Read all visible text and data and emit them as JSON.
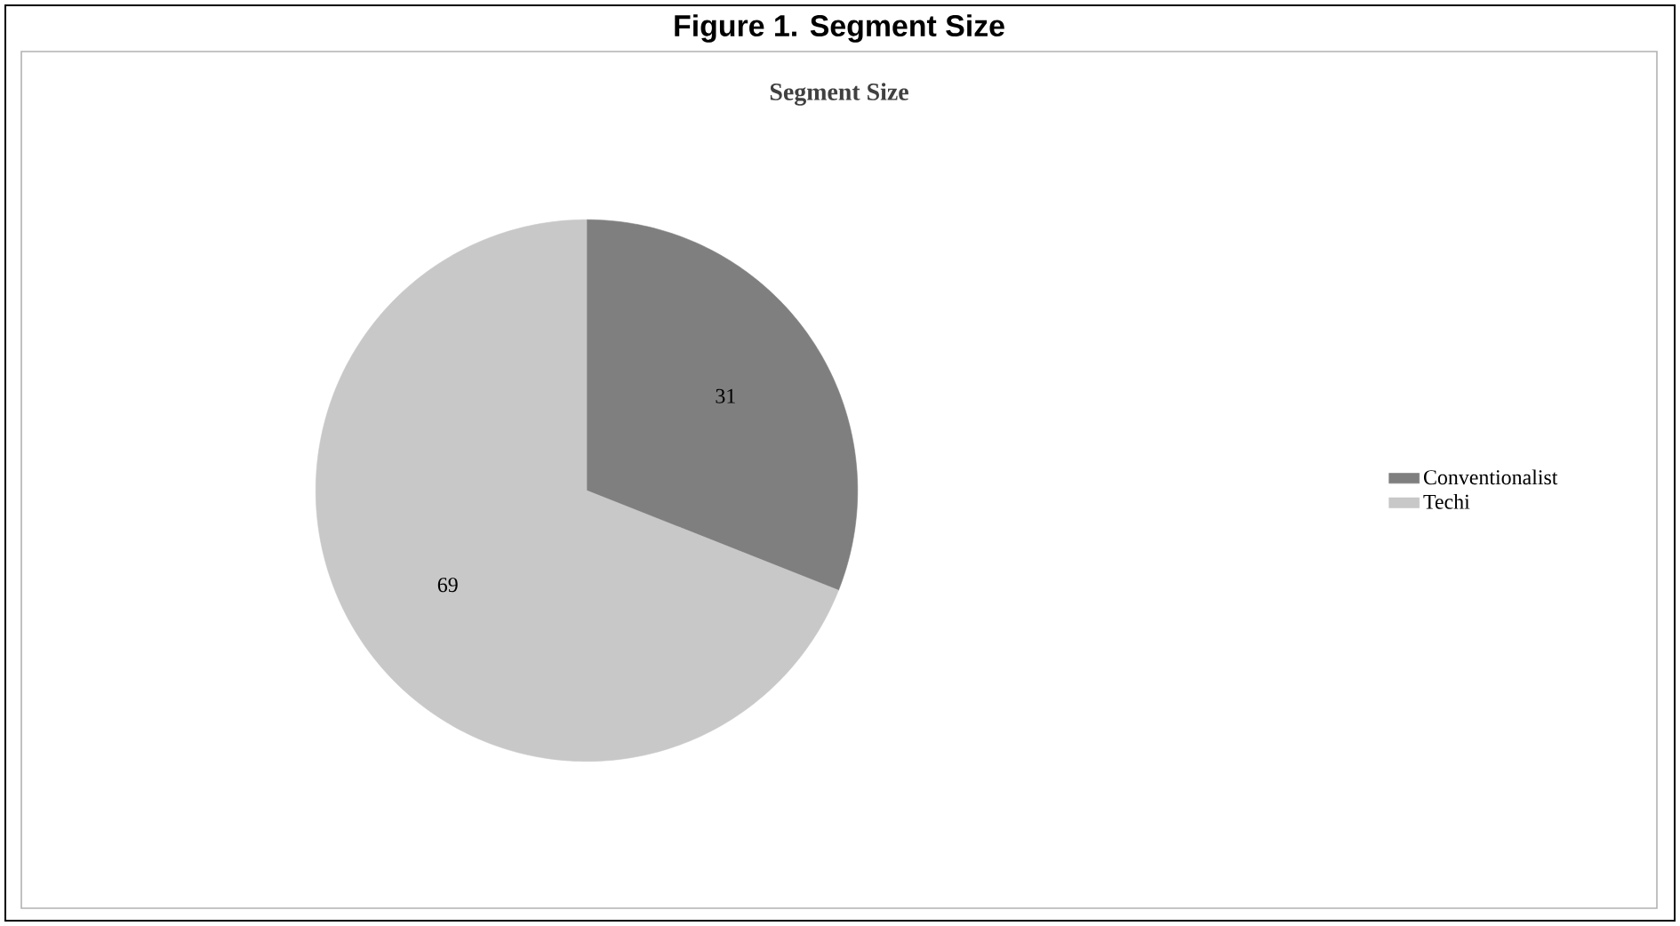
{
  "chart_data": {
    "type": "pie",
    "title": "Figure 1. Segment Size",
    "subtitle": "Segment Size",
    "categories": [
      "Conventionalist",
      "Techi"
    ],
    "values": [
      31,
      69
    ],
    "colors": [
      "#7f7f7f",
      "#c8c8c8"
    ],
    "data_labels": true,
    "legend": "right"
  }
}
